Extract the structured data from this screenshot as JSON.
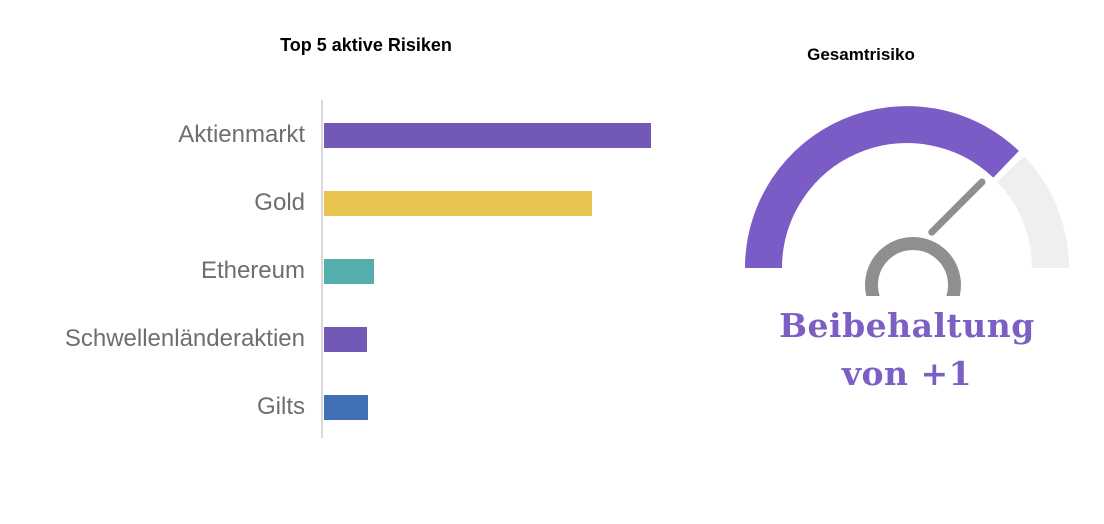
{
  "page": {
    "background": "#ffffff"
  },
  "chart_data": [
    {
      "type": "bar",
      "orientation": "horizontal",
      "title": "Top 5 aktive Risiken",
      "categories": [
        "Aktienmarkt",
        "Gold",
        "Ethereum",
        "Schwellenländeraktien",
        "Gilts"
      ],
      "values": [
        100,
        82,
        15.3,
        13.2,
        13.5
      ],
      "values_unit": "relative active risk (no numeric axis shown, max bar = 100)",
      "bar_colors": [
        "#7159b5",
        "#e6c44f",
        "#55aeac",
        "#7159b5",
        "#4270b7"
      ],
      "axis_line_color": "#d8d8d8",
      "label_color": "#6e6e6e",
      "title_color": "#000000",
      "grid": "off",
      "legend": "none"
    },
    {
      "type": "gauge",
      "title": "Gesamtrisiko",
      "value": "+1",
      "value_label_lines": [
        "Beibehaltung",
        "von +1"
      ],
      "fill_fraction": 0.75,
      "colors": {
        "active": "#7b5bc5",
        "track": "#efefef",
        "needle": "#8f8f8f",
        "hub": "#8f8f8f",
        "label": "#7c5fc4",
        "title": "#000000"
      }
    }
  ]
}
